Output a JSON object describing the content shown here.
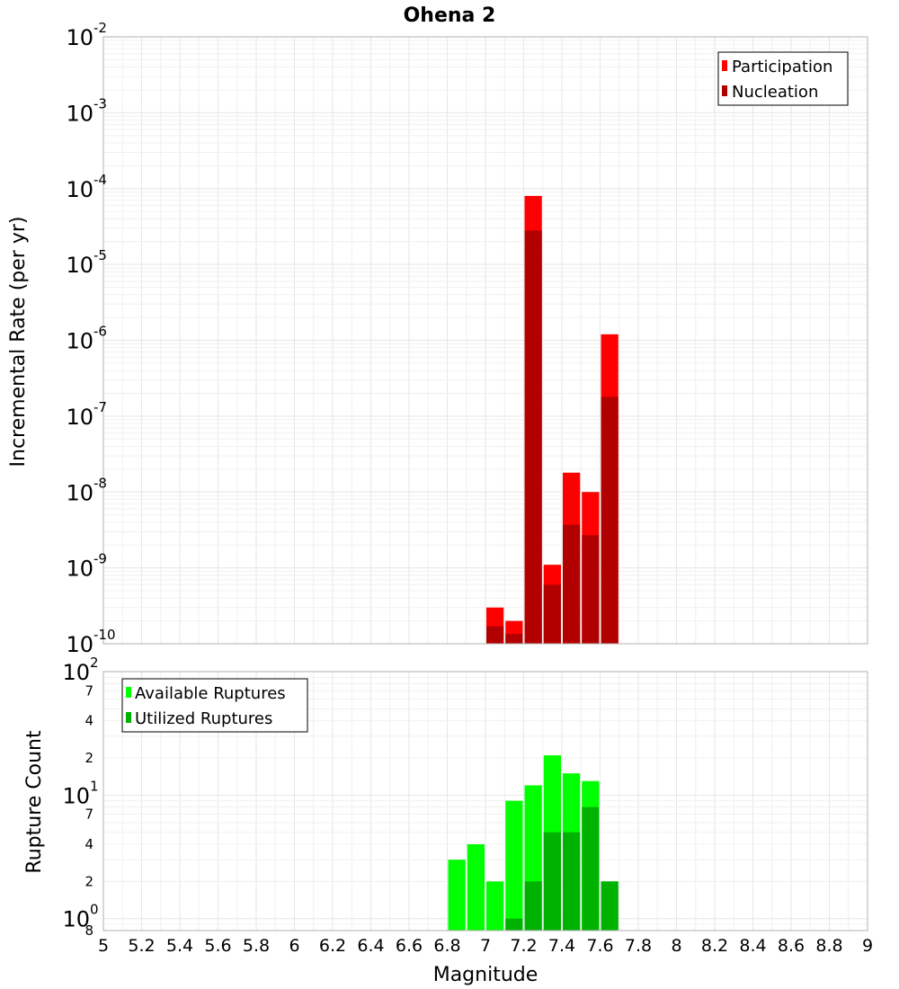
{
  "chart_data": {
    "type": "bar",
    "title": "Ohena 2",
    "xlabel": "Magnitude",
    "x_ticks": [
      "5",
      "5.2",
      "5.4",
      "5.6",
      "5.8",
      "6",
      "6.2",
      "6.4",
      "6.6",
      "6.8",
      "7",
      "7.2",
      "7.4",
      "7.6",
      "7.8",
      "8",
      "8.2",
      "8.4",
      "8.6",
      "8.8",
      "9"
    ],
    "xlim": [
      5,
      9
    ],
    "bin_width": 0.1,
    "rate_panel": {
      "ylabel": "Incremental Rate (per yr)",
      "scale": "log",
      "ylim": [
        1e-10,
        0.01
      ],
      "y_ticks": [
        {
          "base": "10",
          "exp": "-2"
        },
        {
          "base": "10",
          "exp": "-3"
        },
        {
          "base": "10",
          "exp": "-4"
        },
        {
          "base": "10",
          "exp": "-5"
        },
        {
          "base": "10",
          "exp": "-6"
        },
        {
          "base": "10",
          "exp": "-7"
        },
        {
          "base": "10",
          "exp": "-8"
        },
        {
          "base": "10",
          "exp": "-9"
        },
        {
          "base": "10",
          "exp": "-10"
        }
      ],
      "legend": {
        "placement": "top-right"
      },
      "series": [
        {
          "name": "Participation",
          "color": "#ff0000",
          "x": [
            7.05,
            7.15,
            7.25,
            7.35,
            7.45,
            7.55,
            7.65
          ],
          "values": [
            3e-10,
            2e-10,
            8e-05,
            1.1e-09,
            1.8e-08,
            1e-08,
            1.2e-06
          ]
        },
        {
          "name": "Nucleation",
          "color": "#b20000",
          "x": [
            7.05,
            7.15,
            7.25,
            7.35,
            7.45,
            7.55,
            7.65
          ],
          "values": [
            1.7e-10,
            1.35e-10,
            2.8e-05,
            6e-10,
            3.7e-09,
            2.7e-09,
            1.8e-07
          ]
        }
      ]
    },
    "count_panel": {
      "ylabel": "Rupture Count",
      "scale": "log",
      "ylim": [
        0.8,
        100
      ],
      "y_ticks": [
        {
          "base": "10",
          "exp": "2"
        },
        {
          "base": "10",
          "exp": "1"
        },
        {
          "base": "10",
          "exp": "0"
        }
      ],
      "minor_ticks": [
        {
          "label": "7",
          "value": 70
        },
        {
          "label": "4",
          "value": 40
        },
        {
          "label": "2",
          "value": 20
        },
        {
          "label": "7",
          "value": 7
        },
        {
          "label": "4",
          "value": 4
        },
        {
          "label": "2",
          "value": 2
        },
        {
          "label": "8",
          "value": 0.8
        }
      ],
      "legend": {
        "placement": "top-left"
      },
      "series": [
        {
          "name": "Available Ruptures",
          "color": "#00ff00",
          "x": [
            6.85,
            6.95,
            7.05,
            7.15,
            7.25,
            7.35,
            7.45,
            7.55,
            7.65
          ],
          "values": [
            3,
            4,
            2,
            9,
            12,
            21,
            15,
            13,
            2
          ]
        },
        {
          "name": "Utilized Ruptures",
          "color": "#00b200",
          "x": [
            7.15,
            7.25,
            7.35,
            7.45,
            7.55,
            7.65
          ],
          "values": [
            1,
            2,
            5,
            5,
            8,
            2
          ]
        }
      ]
    }
  }
}
